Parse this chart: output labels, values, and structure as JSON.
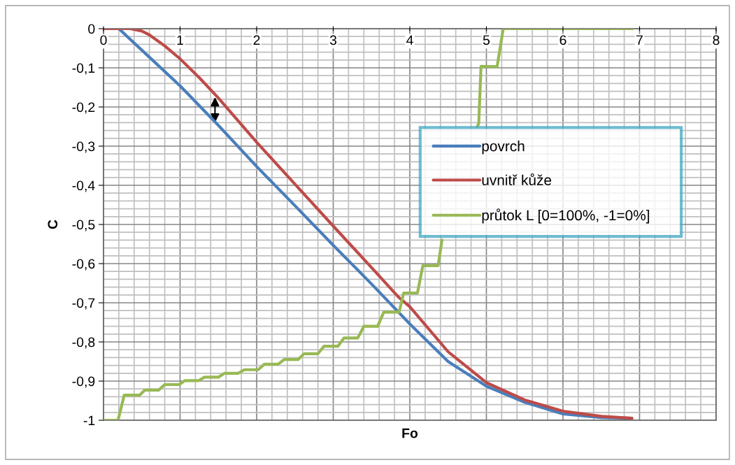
{
  "chart_data": {
    "type": "line",
    "xlabel": "Fo",
    "ylabel": "C",
    "xlim": [
      0,
      8
    ],
    "ylim": [
      -1,
      0
    ],
    "xticks": [
      0,
      1,
      2,
      3,
      4,
      5,
      6,
      7,
      8
    ],
    "yticks": [
      0,
      {
        "value": -0.1,
        "label": "-0,1"
      },
      {
        "value": -0.2,
        "label": "-0,2"
      },
      {
        "value": -0.3,
        "label": "-0,3"
      },
      {
        "value": -0.4,
        "label": "-0,4"
      },
      {
        "value": -0.5,
        "label": "-0,5"
      },
      {
        "value": -0.6,
        "label": "-0,6"
      },
      {
        "value": -0.7,
        "label": "-0,7"
      },
      {
        "value": -0.8,
        "label": "-0,8"
      },
      {
        "value": -0.9,
        "label": "-0,9"
      },
      -1
    ],
    "grid": true,
    "legend": "right",
    "marker": "none",
    "line_style": "solid",
    "series": [
      {
        "name": "povrch",
        "color": "#4a7ebb",
        "x": [
          0.2,
          0.6,
          1,
          1.5,
          2,
          2.5,
          3,
          3.5,
          4,
          4.5,
          5,
          5.5,
          6,
          6.5,
          6.9
        ],
        "values": [
          0,
          -0.073,
          -0.146,
          -0.247,
          -0.352,
          -0.452,
          -0.553,
          -0.652,
          -0.754,
          -0.85,
          -0.913,
          -0.954,
          -0.984,
          -0.993,
          -0.995
        ]
      },
      {
        "name": "uvnitř kůže",
        "color": "#be4b48",
        "x": [
          0,
          0.35,
          0.5,
          0.6,
          0.8,
          1,
          1.25,
          1.5,
          2,
          2.5,
          3,
          3.5,
          3.85,
          4,
          4.5,
          5,
          5.5,
          6,
          6.5,
          6.9
        ],
        "values": [
          0,
          0,
          -0.006,
          -0.016,
          -0.044,
          -0.077,
          -0.125,
          -0.177,
          -0.29,
          -0.397,
          -0.504,
          -0.61,
          -0.685,
          -0.71,
          -0.825,
          -0.904,
          -0.948,
          -0.977,
          -0.99,
          -0.995
        ]
      },
      {
        "name": "průtok L [0=100%, -1=0%]",
        "color": "#98b954",
        "x": [
          0,
          0.19,
          0.27,
          0.47,
          0.54,
          0.72,
          0.8,
          0.99,
          1.06,
          1.24,
          1.32,
          1.5,
          1.58,
          1.76,
          1.84,
          2.02,
          2.1,
          2.28,
          2.36,
          2.54,
          2.62,
          2.8,
          2.88,
          3.06,
          3.14,
          3.32,
          3.4,
          3.58,
          3.66,
          3.86,
          3.92,
          4.1,
          4.17,
          4.37,
          4.42,
          4.6,
          4.88,
          4.9,
          4.93,
          5.14,
          5.22,
          6.91
        ],
        "values": [
          -1,
          -1,
          -0.936,
          -0.936,
          -0.923,
          -0.923,
          -0.909,
          -0.909,
          -0.899,
          -0.899,
          -0.89,
          -0.89,
          -0.88,
          -0.88,
          -0.871,
          -0.871,
          -0.857,
          -0.857,
          -0.845,
          -0.845,
          -0.83,
          -0.83,
          -0.811,
          -0.811,
          -0.79,
          -0.79,
          -0.76,
          -0.76,
          -0.724,
          -0.724,
          -0.675,
          -0.675,
          -0.605,
          -0.605,
          -0.54,
          null,
          -0.25,
          -0.243,
          -0.096,
          -0.097,
          0,
          0
        ]
      }
    ]
  }
}
